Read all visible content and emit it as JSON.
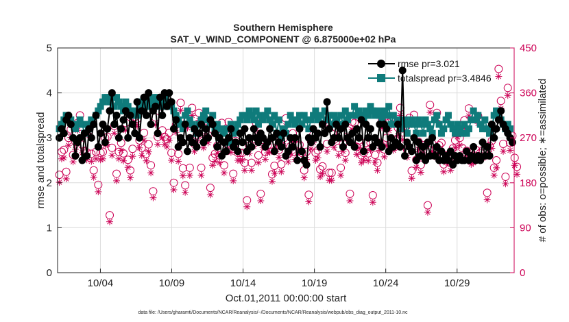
{
  "chart_data": {
    "type": "line",
    "title": "Southern Hemisphere",
    "subtitle": "SAT_V_WIND_COMPONENT @ 6.875000e+02 hPa",
    "xlabel": "Oct.01,2011 00:00:00 start",
    "ylabel": "rmse and totalspread",
    "ylabel_right": "# of obs: o=possible; ∗=assimilated",
    "footnote": "data file: /Users/gharamti/Documents/NCAR/Reanalysis/~/Documents/NCAR/Reanalysis/webpub/obs_diag_output_2011-10.nc",
    "x_range_days": [
      0,
      32
    ],
    "x_ticks": [
      {
        "day": 3,
        "label": "10/04"
      },
      {
        "day": 8,
        "label": "10/09"
      },
      {
        "day": 13,
        "label": "10/14"
      },
      {
        "day": 18,
        "label": "10/19"
      },
      {
        "day": 23,
        "label": "10/24"
      },
      {
        "day": 28,
        "label": "10/29"
      }
    ],
    "ylim": [
      0,
      5
    ],
    "y_ticks": [
      0,
      1,
      2,
      3,
      4,
      5
    ],
    "ylim_right": [
      0,
      450
    ],
    "y_ticks_right": [
      0,
      90,
      180,
      270,
      360,
      450
    ],
    "grid": true,
    "legend_position": "top-right",
    "colors": {
      "rmse": "#000000",
      "spread": "#0f7b7b",
      "obs": "#cc0055",
      "axis": "#222222",
      "grid": "#dcdcdc"
    },
    "series": [
      {
        "name": "rmse",
        "legend": "rmse pr=3.021",
        "axis": "left",
        "marker": "circle",
        "values": [
          3.0,
          3.2,
          3.1,
          3.4,
          3.5,
          3.3,
          3.0,
          2.6,
          2.9,
          3.0,
          2.5,
          3.1,
          2.6,
          3.2,
          3.0,
          3.3,
          3.5,
          2.8,
          3.1,
          3.3,
          2.9,
          3.2,
          3.6,
          4.0,
          3.3,
          3.5,
          3.0,
          3.2,
          3.4,
          3.6,
          3.0,
          3.5,
          3.3,
          3.1,
          3.8,
          3.0,
          3.6,
          3.9,
          3.5,
          4.0,
          3.3,
          3.6,
          3.7,
          3.1,
          3.9,
          3.5,
          4.0,
          3.7,
          4.0,
          3.8,
          3.2,
          3.4,
          2.8,
          3.0,
          2.9,
          3.3,
          2.7,
          3.0,
          2.9,
          3.2,
          2.8,
          3.1,
          3.3,
          2.9,
          3.2,
          3.0,
          3.4,
          3.3,
          3.1,
          2.8,
          3.0,
          2.6,
          2.9,
          2.7,
          3.0,
          3.2,
          2.8,
          2.9,
          2.7,
          3.1,
          2.9,
          3.2,
          2.7,
          3.0,
          2.8,
          3.2,
          3.0,
          2.9,
          3.1,
          3.0,
          2.8,
          2.9,
          3.2,
          3.0,
          2.7,
          3.1,
          2.9,
          2.8,
          3.1,
          2.6,
          2.7,
          3.0,
          2.8,
          3.0,
          2.5,
          3.2,
          2.7,
          2.5,
          2.4,
          3.0,
          2.9,
          3.2,
          3.0,
          3.1,
          2.8,
          3.3,
          3.1,
          3.8,
          3.2,
          2.9,
          3.0,
          3.3,
          3.0,
          3.2,
          2.8,
          3.3,
          3.0,
          2.9,
          3.1,
          2.8,
          3.2,
          3.0,
          3.4,
          2.7,
          3.3,
          3.0,
          3.2,
          2.8,
          3.0,
          2.9,
          3.3,
          2.8,
          3.3,
          3.2,
          2.7,
          3.0,
          2.8,
          2.9,
          3.3,
          2.8,
          4.5,
          2.6,
          2.9,
          2.8,
          2.7,
          3.0,
          2.5,
          2.9,
          2.6,
          2.8,
          2.5,
          2.9,
          2.6,
          3.0,
          2.6,
          2.8,
          2.5,
          2.7,
          2.5,
          2.6,
          2.5,
          2.7,
          2.4,
          2.6,
          2.5,
          2.6,
          2.5,
          2.5,
          2.7,
          2.5,
          2.6,
          2.8,
          2.5,
          2.6,
          2.5,
          2.9,
          2.6,
          2.8,
          2.6,
          3.3,
          3.0,
          3.2,
          3.4,
          3.6,
          3.3,
          3.2,
          3.1,
          3.0,
          2.9
        ]
      },
      {
        "name": "totalspread",
        "legend": "totalspread pr=3.4846",
        "axis": "left",
        "marker": "square",
        "values": [
          3.2,
          3.3,
          3.4,
          3.5,
          3.4,
          3.4,
          3.3,
          3.2,
          3.3,
          3.4,
          3.3,
          3.1,
          3.3,
          3.2,
          3.4,
          3.3,
          3.5,
          3.6,
          3.7,
          3.8,
          3.9,
          3.9,
          3.8,
          3.9,
          3.7,
          3.9,
          3.8,
          3.7,
          3.6,
          3.8,
          3.7,
          3.6,
          3.5,
          3.6,
          3.5,
          3.7,
          3.8,
          3.6,
          3.7,
          3.8,
          3.7,
          3.9,
          3.8,
          3.9,
          3.7,
          3.8,
          3.9,
          3.7,
          3.8,
          3.7,
          3.6,
          3.5,
          3.4,
          3.3,
          3.2,
          3.5,
          3.6,
          3.4,
          3.3,
          3.2,
          3.1,
          3.3,
          3.4,
          3.5,
          3.6,
          3.4,
          3.3,
          3.5,
          3.2,
          3.3,
          3.0,
          3.2,
          3.1,
          3.2,
          2.9,
          3.3,
          3.1,
          3.2,
          3.3,
          3.4,
          3.5,
          3.5,
          3.4,
          3.6,
          3.5,
          3.4,
          3.6,
          3.3,
          3.5,
          3.4,
          3.5,
          3.6,
          3.4,
          3.3,
          3.5,
          3.1,
          3.4,
          3.0,
          3.2,
          3.1,
          3.3,
          3.5,
          3.4,
          3.3,
          3.4,
          3.5,
          3.3,
          3.5,
          3.4,
          3.2,
          3.4,
          3.5,
          3.6,
          3.4,
          3.5,
          3.3,
          3.6,
          3.4,
          3.5,
          3.3,
          3.5,
          3.4,
          3.3,
          3.5,
          3.3,
          3.6,
          3.4,
          3.5,
          3.5,
          3.7,
          3.5,
          3.6,
          3.5,
          3.4,
          3.6,
          3.5,
          3.7,
          3.6,
          3.5,
          3.6,
          3.5,
          3.4,
          3.6,
          3.5,
          3.7,
          3.3,
          3.5,
          3.3,
          3.4,
          3.2,
          3.3,
          3.4,
          3.1,
          3.3,
          3.4,
          3.3,
          3.1,
          3.4,
          3.3,
          3.1,
          3.4,
          3.3,
          3.2,
          3.1,
          3.4,
          3.5,
          3.3,
          3.1,
          3.2,
          3.4,
          3.5,
          3.3,
          3.2,
          3.1,
          3.3,
          3.2,
          3.1,
          3.3,
          3.1,
          3.2,
          3.4,
          3.6,
          3.4,
          3.5,
          3.3,
          3.2,
          3.4,
          3.2,
          3.1,
          3.2,
          3.5,
          3.6,
          3.5,
          3.4,
          3.3,
          3.2,
          3.3,
          3.2
        ]
      },
      {
        "name": "obs_possible",
        "legend": "",
        "axis": "right",
        "marker": "open-circle",
        "values": [
          196,
          242,
          246,
          202,
          270,
          287,
          236,
          262,
          300,
          315,
          256,
          244,
          241,
          290,
          238,
          205,
          242,
          176,
          240,
          242,
          270,
          272,
          115,
          250,
          294,
          198,
          242,
          260,
          239,
          300,
          226,
          205,
          248,
          312,
          308,
          265,
          250,
          280,
          238,
          257,
          215,
          163,
          311,
          272,
          346,
          285,
          272,
          267,
          280,
          240,
          180,
          296,
          238,
          340,
          209,
          175,
          305,
          210,
          330,
          258,
          275,
          320,
          210,
          265,
          290,
          275,
          170,
          230,
          238,
          254,
          235,
          300,
          215,
          258,
          302,
          256,
          198,
          264,
          240,
          240,
          240,
          220,
          145,
          254,
          220,
          268,
          300,
          235,
          158,
          266,
          242,
          255,
          256,
          197,
          214,
          262,
          246,
          217,
          269,
          309,
          237,
          253,
          279,
          242,
          255,
          256,
          240,
          205,
          242,
          156,
          263,
          276,
          240,
          245,
          207,
          213,
          310,
          258,
          200,
          200,
          266,
          290,
          250,
          210,
          258,
          240,
          285,
          158,
          302,
          300,
          252,
          265,
          235,
          240,
          260,
          239,
          260,
          155,
          236,
          220,
          260,
          305,
          247,
          270,
          300,
          310,
          260,
          265,
          290,
          330,
          281,
          300,
          246,
          310,
          204,
          316,
          226,
          262,
          216,
          255,
          243,
          135,
          336,
          258,
          247,
          320,
          255,
          260,
          217,
          235,
          234,
          220,
          249,
          265,
          287,
          270,
          250,
          305,
          244,
          329,
          232,
          235,
          246,
          314,
          240,
          245,
          246,
          160,
          254,
          264,
          210,
          225,
          408,
          344,
          258,
          192,
          370,
          260,
          274,
          230,
          212
        ]
      },
      {
        "name": "obs_assimilated",
        "legend": "",
        "axis": "right",
        "marker": "asterisk",
        "values": [
          181,
          228,
          230,
          188,
          255,
          271,
          222,
          247,
          285,
          300,
          240,
          230,
          226,
          275,
          223,
          191,
          228,
          162,
          226,
          228,
          255,
          257,
          102,
          235,
          279,
          184,
          228,
          245,
          224,
          285,
          211,
          190,
          233,
          297,
          293,
          250,
          235,
          265,
          224,
          242,
          200,
          150,
          296,
          257,
          331,
          270,
          257,
          252,
          265,
          225,
          166,
          281,
          223,
          325,
          194,
          161,
          290,
          195,
          315,
          243,
          260,
          305,
          195,
          250,
          275,
          260,
          156,
          215,
          223,
          239,
          220,
          285,
          200,
          243,
          287,
          241,
          184,
          249,
          225,
          225,
          225,
          205,
          132,
          239,
          205,
          253,
          285,
          220,
          144,
          251,
          227,
          240,
          241,
          183,
          199,
          247,
          231,
          202,
          254,
          294,
          222,
          238,
          264,
          227,
          240,
          241,
          225,
          190,
          227,
          142,
          248,
          261,
          225,
          230,
          192,
          198,
          295,
          243,
          185,
          185,
          251,
          275,
          235,
          195,
          243,
          225,
          270,
          144,
          287,
          285,
          237,
          250,
          220,
          225,
          245,
          224,
          245,
          141,
          221,
          205,
          245,
          290,
          232,
          255,
          285,
          295,
          245,
          250,
          275,
          315,
          266,
          285,
          231,
          295,
          189,
          301,
          211,
          247,
          201,
          240,
          228,
          121,
          321,
          243,
          232,
          305,
          240,
          245,
          202,
          220,
          219,
          205,
          234,
          250,
          272,
          255,
          235,
          290,
          229,
          314,
          217,
          220,
          231,
          299,
          225,
          230,
          231,
          146,
          239,
          249,
          195,
          210,
          393,
          329,
          243,
          178,
          355,
          245,
          259,
          215,
          197
        ]
      }
    ]
  }
}
